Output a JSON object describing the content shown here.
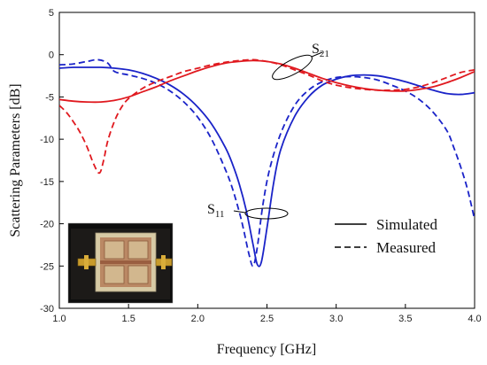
{
  "chart_data": {
    "type": "line",
    "title": "",
    "xlabel": "Frequency [GHz]",
    "ylabel": "Scattering Parameters [dB]",
    "xlim": [
      1.0,
      4.0
    ],
    "ylim": [
      -30,
      5
    ],
    "x_ticks": [
      "1.0",
      "1.5",
      "2.0",
      "2.5",
      "3.0",
      "3.5",
      "4.0"
    ],
    "y_ticks": [
      "5",
      "0",
      "-5",
      "-10",
      "-15",
      "-20",
      "-25",
      "-30"
    ],
    "grid": false,
    "legend_position": "center-right",
    "legend": [
      {
        "label": "Simulated",
        "style": "solid"
      },
      {
        "label": "Measured",
        "style": "dashed"
      }
    ],
    "annotations": [
      {
        "text": "S",
        "sub": "21",
        "target": "red curves"
      },
      {
        "text": "S",
        "sub": "11",
        "target": "blue curves"
      }
    ],
    "inset": "photo of fabricated circuit board with connectors",
    "series": [
      {
        "param": "S11",
        "kind": "simulated",
        "color": "#1a23c8",
        "dash": "solid",
        "x": [
          1.0,
          1.1,
          1.2,
          1.3,
          1.4,
          1.5,
          1.6,
          1.7,
          1.8,
          1.9,
          2.0,
          2.1,
          2.2,
          2.25,
          2.3,
          2.35,
          2.4,
          2.43,
          2.46,
          2.5,
          2.55,
          2.6,
          2.7,
          2.8,
          2.9,
          3.0,
          3.1,
          3.2,
          3.3,
          3.4,
          3.5,
          3.6,
          3.7,
          3.8,
          3.9,
          4.0
        ],
        "y": [
          -1.6,
          -1.5,
          -1.5,
          -1.5,
          -1.6,
          -1.8,
          -2.2,
          -2.8,
          -3.6,
          -4.7,
          -6.2,
          -8.2,
          -11.0,
          -12.9,
          -15.3,
          -18.4,
          -22.5,
          -24.8,
          -24.5,
          -20.5,
          -15.0,
          -11.2,
          -7.3,
          -5.0,
          -3.6,
          -2.9,
          -2.5,
          -2.4,
          -2.5,
          -2.8,
          -3.2,
          -3.7,
          -4.2,
          -4.6,
          -4.7,
          -4.5
        ]
      },
      {
        "param": "S11",
        "kind": "measured",
        "color": "#1a23c8",
        "dash": "dashed",
        "x": [
          1.0,
          1.1,
          1.2,
          1.28,
          1.35,
          1.4,
          1.5,
          1.6,
          1.7,
          1.8,
          1.9,
          2.0,
          2.1,
          2.2,
          2.25,
          2.3,
          2.33,
          2.37,
          2.4,
          2.43,
          2.47,
          2.52,
          2.6,
          2.7,
          2.8,
          2.9,
          3.0,
          3.1,
          3.2,
          3.3,
          3.4,
          3.5,
          3.6,
          3.7,
          3.8,
          3.85,
          3.9,
          3.95,
          4.0
        ],
        "y": [
          -1.2,
          -1.1,
          -0.8,
          -0.6,
          -1.0,
          -2.0,
          -2.4,
          -2.8,
          -3.4,
          -4.3,
          -5.6,
          -7.4,
          -10.0,
          -13.6,
          -15.8,
          -18.6,
          -20.6,
          -23.6,
          -25.0,
          -22.8,
          -17.8,
          -13.5,
          -9.3,
          -6.0,
          -4.2,
          -3.2,
          -2.7,
          -2.6,
          -2.7,
          -3.0,
          -3.6,
          -4.3,
          -5.3,
          -6.8,
          -9.0,
          -11.0,
          -13.3,
          -16.0,
          -19.5
        ]
      },
      {
        "param": "S21",
        "kind": "simulated",
        "color": "#e0191f",
        "dash": "solid",
        "x": [
          1.0,
          1.1,
          1.2,
          1.3,
          1.4,
          1.5,
          1.6,
          1.7,
          1.8,
          1.9,
          2.0,
          2.1,
          2.2,
          2.3,
          2.4,
          2.5,
          2.6,
          2.7,
          2.8,
          2.9,
          3.0,
          3.1,
          3.2,
          3.3,
          3.4,
          3.5,
          3.6,
          3.7,
          3.8,
          3.9,
          4.0
        ],
        "y": [
          -5.3,
          -5.5,
          -5.6,
          -5.6,
          -5.4,
          -5.0,
          -4.4,
          -3.8,
          -3.1,
          -2.5,
          -1.9,
          -1.4,
          -1.0,
          -0.8,
          -0.7,
          -0.8,
          -1.1,
          -1.6,
          -2.2,
          -2.8,
          -3.3,
          -3.7,
          -4.0,
          -4.2,
          -4.3,
          -4.3,
          -4.1,
          -3.8,
          -3.3,
          -2.7,
          -2.0
        ]
      },
      {
        "param": "S21",
        "kind": "measured",
        "color": "#e0191f",
        "dash": "dashed",
        "x": [
          1.0,
          1.05,
          1.1,
          1.15,
          1.2,
          1.25,
          1.29,
          1.32,
          1.35,
          1.4,
          1.45,
          1.5,
          1.6,
          1.7,
          1.8,
          1.9,
          2.0,
          2.1,
          2.2,
          2.3,
          2.4,
          2.5,
          2.6,
          2.7,
          2.8,
          2.9,
          3.0,
          3.1,
          3.2,
          3.3,
          3.4,
          3.5,
          3.6,
          3.7,
          3.8,
          3.9,
          4.0
        ],
        "y": [
          -6.0,
          -6.8,
          -7.9,
          -9.2,
          -10.9,
          -13.0,
          -14.0,
          -12.5,
          -10.2,
          -7.8,
          -6.2,
          -5.2,
          -4.0,
          -3.2,
          -2.6,
          -2.0,
          -1.6,
          -1.2,
          -0.9,
          -0.7,
          -0.6,
          -0.8,
          -1.2,
          -1.8,
          -2.4,
          -3.1,
          -3.6,
          -3.9,
          -4.1,
          -4.2,
          -4.2,
          -4.1,
          -3.8,
          -3.3,
          -2.7,
          -2.1,
          -1.8
        ]
      }
    ]
  }
}
